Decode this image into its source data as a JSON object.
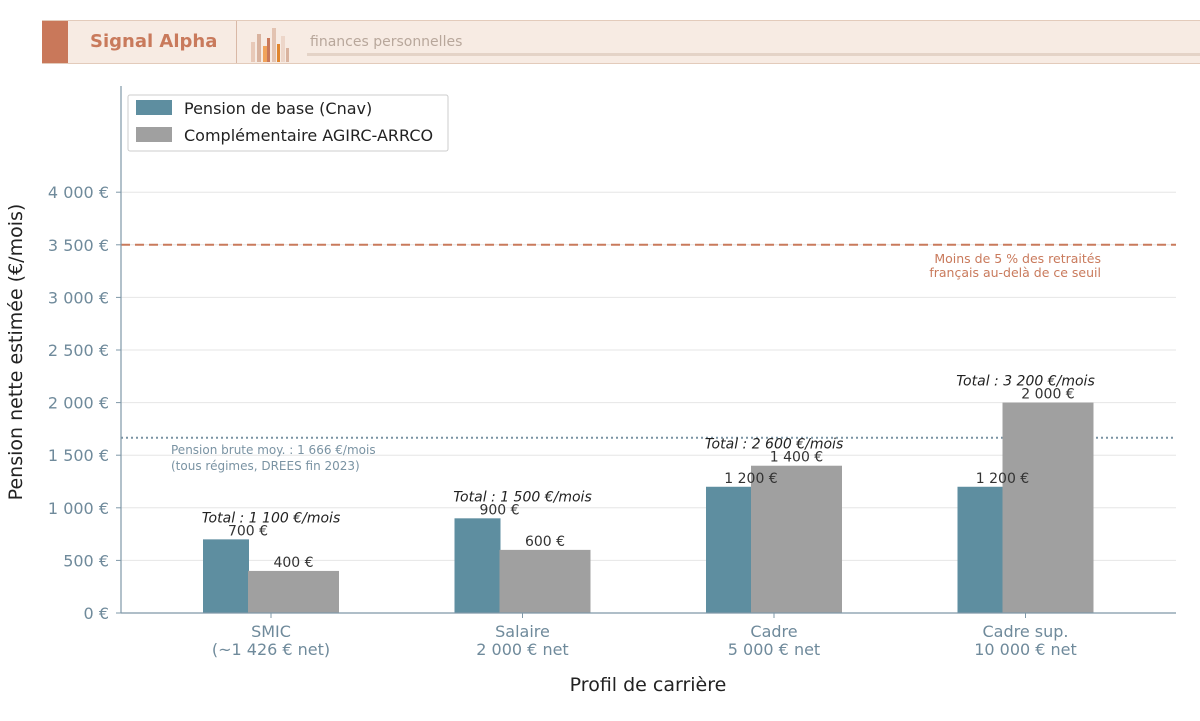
{
  "banner": {
    "brand": "Signal Alpha",
    "tagline": "finances personnelles",
    "logo_icon": "bar-chart-logo-icon"
  },
  "chart_data": {
    "type": "bar",
    "categories": [
      [
        "SMIC",
        "(~1 426 € net)"
      ],
      [
        "Salaire",
        "2 000 € net"
      ],
      [
        "Cadre",
        "5 000 € net"
      ],
      [
        "Cadre sup.",
        "10 000 € net"
      ]
    ],
    "series": [
      {
        "name": "Pension de base (Cnav)",
        "color": "#5e8ea0",
        "values": [
          700,
          900,
          1200,
          1200
        ],
        "labels": [
          "700 €",
          "900 €",
          "1 200 €",
          "1 200 €"
        ]
      },
      {
        "name": "Complémentaire AGIRC-ARRCO",
        "color": "#a0a0a0",
        "values": [
          400,
          600,
          1400,
          2000
        ],
        "labels": [
          "400 €",
          "600 €",
          "1 400 €",
          "2 000 €"
        ]
      }
    ],
    "totals": [
      "Total : 1 100 €/mois",
      "Total : 1 500 €/mois",
      "Total : 2 600 €/mois",
      "Total : 3 200 €/mois"
    ],
    "xlabel": "Profil de carrière",
    "ylabel": "Pension nette estimée (€/mois)",
    "ylim": [
      0,
      5000
    ],
    "yticks": [
      0,
      500,
      1000,
      1500,
      2000,
      2500,
      3000,
      3500,
      4000
    ],
    "ytick_labels": [
      "0 €",
      "500 €",
      "1 000 €",
      "1 500 €",
      "2 000 €",
      "2 500 €",
      "3 000 €",
      "3 500 €",
      "4 000 €"
    ],
    "grid": true,
    "legend_position": "top-left",
    "reference_lines": [
      {
        "value": 1666,
        "style": "dotted",
        "color": "#7a93a3",
        "label": [
          "Pension brute moy. : 1 666 €/mois",
          "(tous régimes, DREES fin 2023)"
        ]
      },
      {
        "value": 3500,
        "style": "dashed",
        "color": "#c97a5c",
        "label": [
          "Moins de 5 % des retraités",
          "français au-delà de ce seuil"
        ]
      }
    ]
  }
}
